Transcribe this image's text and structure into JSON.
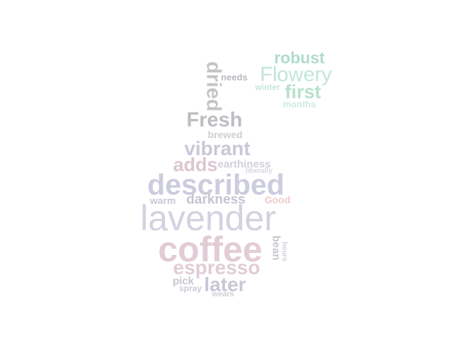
{
  "words": [
    {
      "text": "robust",
      "color": "#b0dccb"
    },
    {
      "text": "Flowery",
      "color": "#c0e6d8"
    },
    {
      "text": "first",
      "color": "#b8e0cf"
    },
    {
      "text": "winter",
      "color": "#c6e6dc"
    },
    {
      "text": "months",
      "color": "#cfeae2"
    },
    {
      "text": "needs",
      "color": "#b8b8c0"
    },
    {
      "text": "dried",
      "color": "#c4c4c8"
    },
    {
      "text": "Fresh",
      "color": "#bdbdc2"
    },
    {
      "text": "brewed",
      "color": "#cfcfd3"
    },
    {
      "text": "vibrant",
      "color": "#c8c8d9"
    },
    {
      "text": "adds",
      "color": "#ddc6d0"
    },
    {
      "text": "earthiness",
      "color": "#d0d0dd"
    },
    {
      "text": "liberally",
      "color": "#d7d7e1"
    },
    {
      "text": "described",
      "color": "#ccccdf"
    },
    {
      "text": "warm",
      "color": "#c9c9d5"
    },
    {
      "text": "darkness",
      "color": "#c4c4d3"
    },
    {
      "text": "Good",
      "color": "#f0c8c8"
    },
    {
      "text": "lavender",
      "color": "#d2d2e1"
    },
    {
      "text": "coffee",
      "color": "#e2ccd6"
    },
    {
      "text": "bean",
      "color": "#c6c6cf"
    },
    {
      "text": "hours",
      "color": "#d0d0d9"
    },
    {
      "text": "espresso",
      "color": "#e0cdd6"
    },
    {
      "text": "pick",
      "color": "#c6c6d0"
    },
    {
      "text": "spray",
      "color": "#cbcbd6"
    },
    {
      "text": "later",
      "color": "#c7c7d6"
    },
    {
      "text": "wears",
      "color": "#cfcfd9"
    }
  ]
}
